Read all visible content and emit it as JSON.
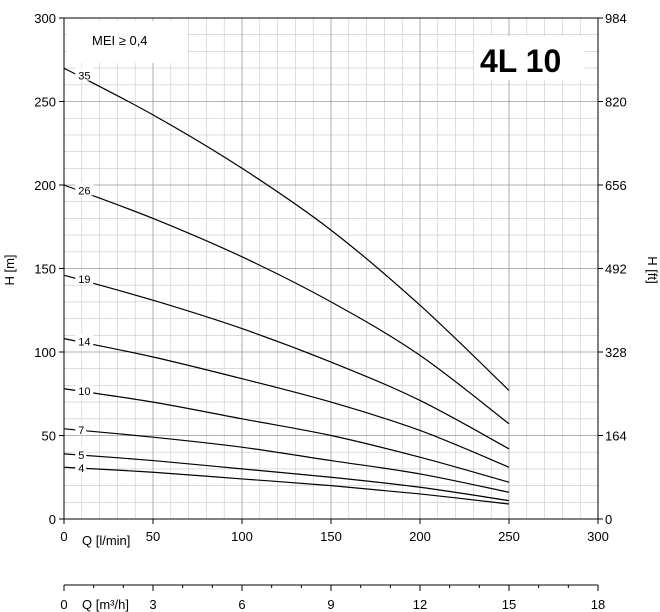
{
  "chart_data": {
    "type": "line",
    "title": "4L 10",
    "annotation": "MEI ≥ 0,4",
    "xlabel": "Q [l/min]",
    "ylabel": "H [m]",
    "y2label": "H [ft]",
    "x2label": "Q [m³/h]",
    "xlim": [
      0,
      300
    ],
    "ylim": [
      0,
      300
    ],
    "x_ticks": [
      "0",
      "50",
      "100",
      "150",
      "200",
      "250",
      "300"
    ],
    "y_ticks": [
      "0",
      "50",
      "100",
      "150",
      "200",
      "250",
      "300"
    ],
    "y2_ticks": [
      "0",
      "164",
      "328",
      "492",
      "656",
      "820",
      "984"
    ],
    "x2_ticks": [
      "0",
      "3",
      "6",
      "9",
      "12",
      "15",
      "18"
    ],
    "grid": true,
    "series": [
      {
        "name": "35",
        "x": [
          0,
          50,
          100,
          150,
          200,
          250
        ],
        "y": [
          270,
          242,
          210,
          173,
          128,
          77
        ]
      },
      {
        "name": "26",
        "x": [
          0,
          50,
          100,
          150,
          200,
          250
        ],
        "y": [
          200,
          180,
          157,
          130,
          98,
          57
        ]
      },
      {
        "name": "19",
        "x": [
          0,
          50,
          100,
          150,
          200,
          250
        ],
        "y": [
          146,
          131,
          114,
          94,
          71,
          42
        ]
      },
      {
        "name": "14",
        "x": [
          0,
          50,
          100,
          150,
          200,
          250
        ],
        "y": [
          108,
          97,
          84,
          70,
          53,
          31
        ]
      },
      {
        "name": "10",
        "x": [
          0,
          50,
          100,
          150,
          200,
          250
        ],
        "y": [
          78,
          70,
          60,
          50,
          37,
          22
        ]
      },
      {
        "name": "7",
        "x": [
          0,
          50,
          100,
          150,
          200,
          250
        ],
        "y": [
          54,
          49,
          43,
          35,
          27,
          16
        ]
      },
      {
        "name": "5",
        "x": [
          0,
          50,
          100,
          150,
          200,
          250
        ],
        "y": [
          39,
          35,
          30,
          25,
          19,
          11
        ]
      },
      {
        "name": "4",
        "x": [
          0,
          50,
          100,
          150,
          200,
          250
        ],
        "y": [
          31,
          28,
          24,
          20,
          15,
          9
        ]
      }
    ]
  }
}
